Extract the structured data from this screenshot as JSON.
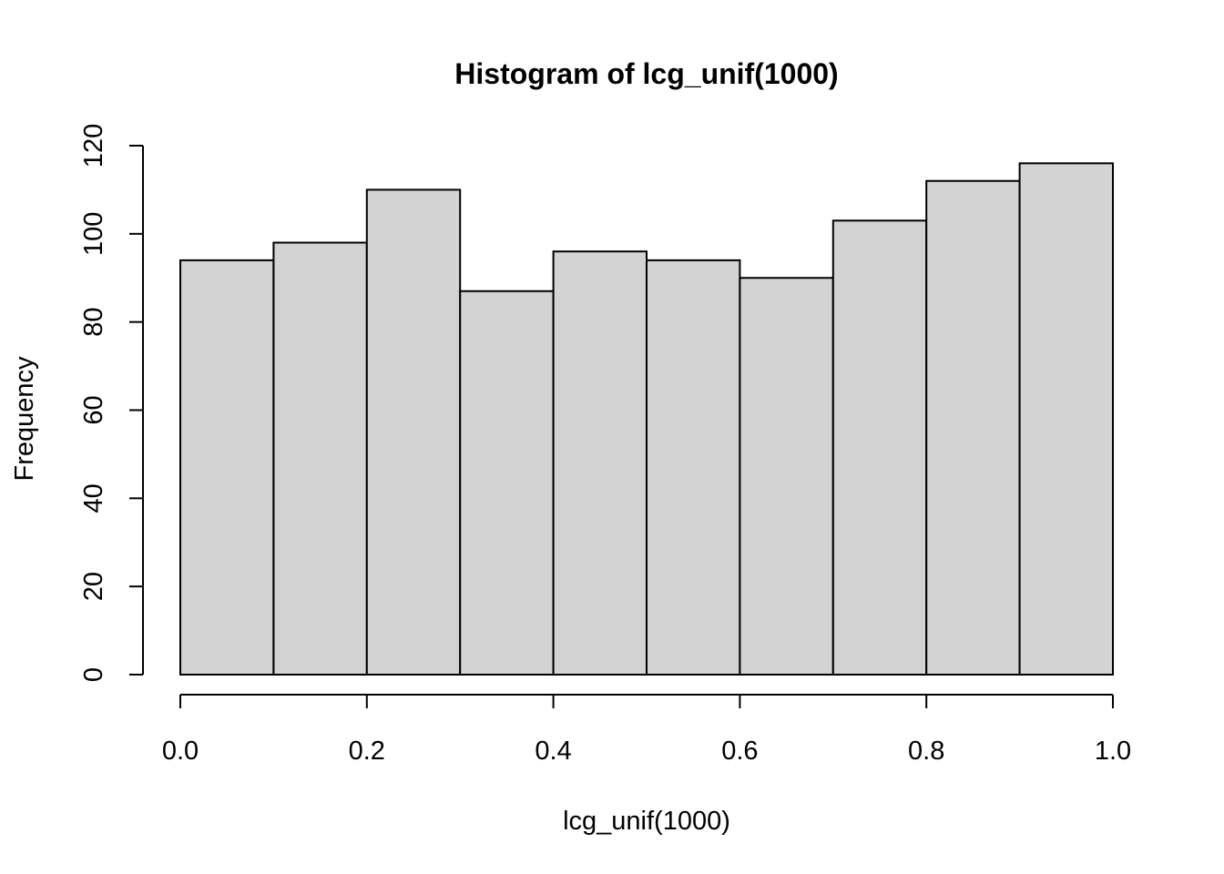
{
  "chart_data": {
    "type": "bar",
    "title": "Histogram of lcg_unif(1000)",
    "xlabel": "lcg_unif(1000)",
    "ylabel": "Frequency",
    "breaks": [
      0.0,
      0.1,
      0.2,
      0.3,
      0.4,
      0.5,
      0.6,
      0.7,
      0.8,
      0.9,
      1.0
    ],
    "values": [
      94,
      98,
      110,
      87,
      96,
      94,
      90,
      103,
      112,
      116
    ],
    "xlim": [
      0,
      1
    ],
    "ylim": [
      0,
      120
    ],
    "xticks": [
      "0.0",
      "0.2",
      "0.4",
      "0.6",
      "0.8",
      "1.0"
    ],
    "yticks": [
      "0",
      "20",
      "40",
      "60",
      "80",
      "100",
      "120"
    ],
    "grid": false,
    "bar_color": "#d3d3d3",
    "border_color": "#000000"
  }
}
